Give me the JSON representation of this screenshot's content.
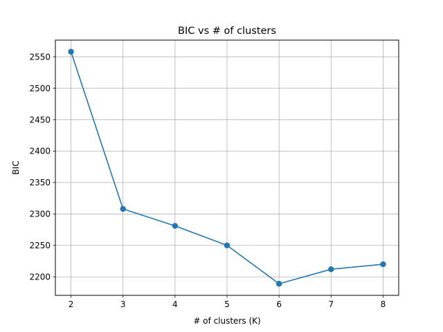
{
  "chart_data": {
    "type": "line",
    "title": "BIC vs # of clusters",
    "xlabel": "# of clusters (K)",
    "ylabel": "BIC",
    "x": [
      2,
      3,
      4,
      5,
      6,
      7,
      8
    ],
    "series": [
      {
        "values": [
          2558,
          2308,
          2281,
          2250,
          2189,
          2212,
          2220
        ]
      }
    ],
    "xticks": [
      "2",
      "3",
      "4",
      "5",
      "6",
      "7",
      "8"
    ],
    "yticks": [
      "2200",
      "2250",
      "2300",
      "2350",
      "2400",
      "2450",
      "2500",
      "2550"
    ],
    "xlim": [
      1.7,
      8.3
    ],
    "ylim": [
      2170.55,
      2576.45
    ],
    "grid": true,
    "marker": "circle",
    "color": "#1f77b4"
  }
}
